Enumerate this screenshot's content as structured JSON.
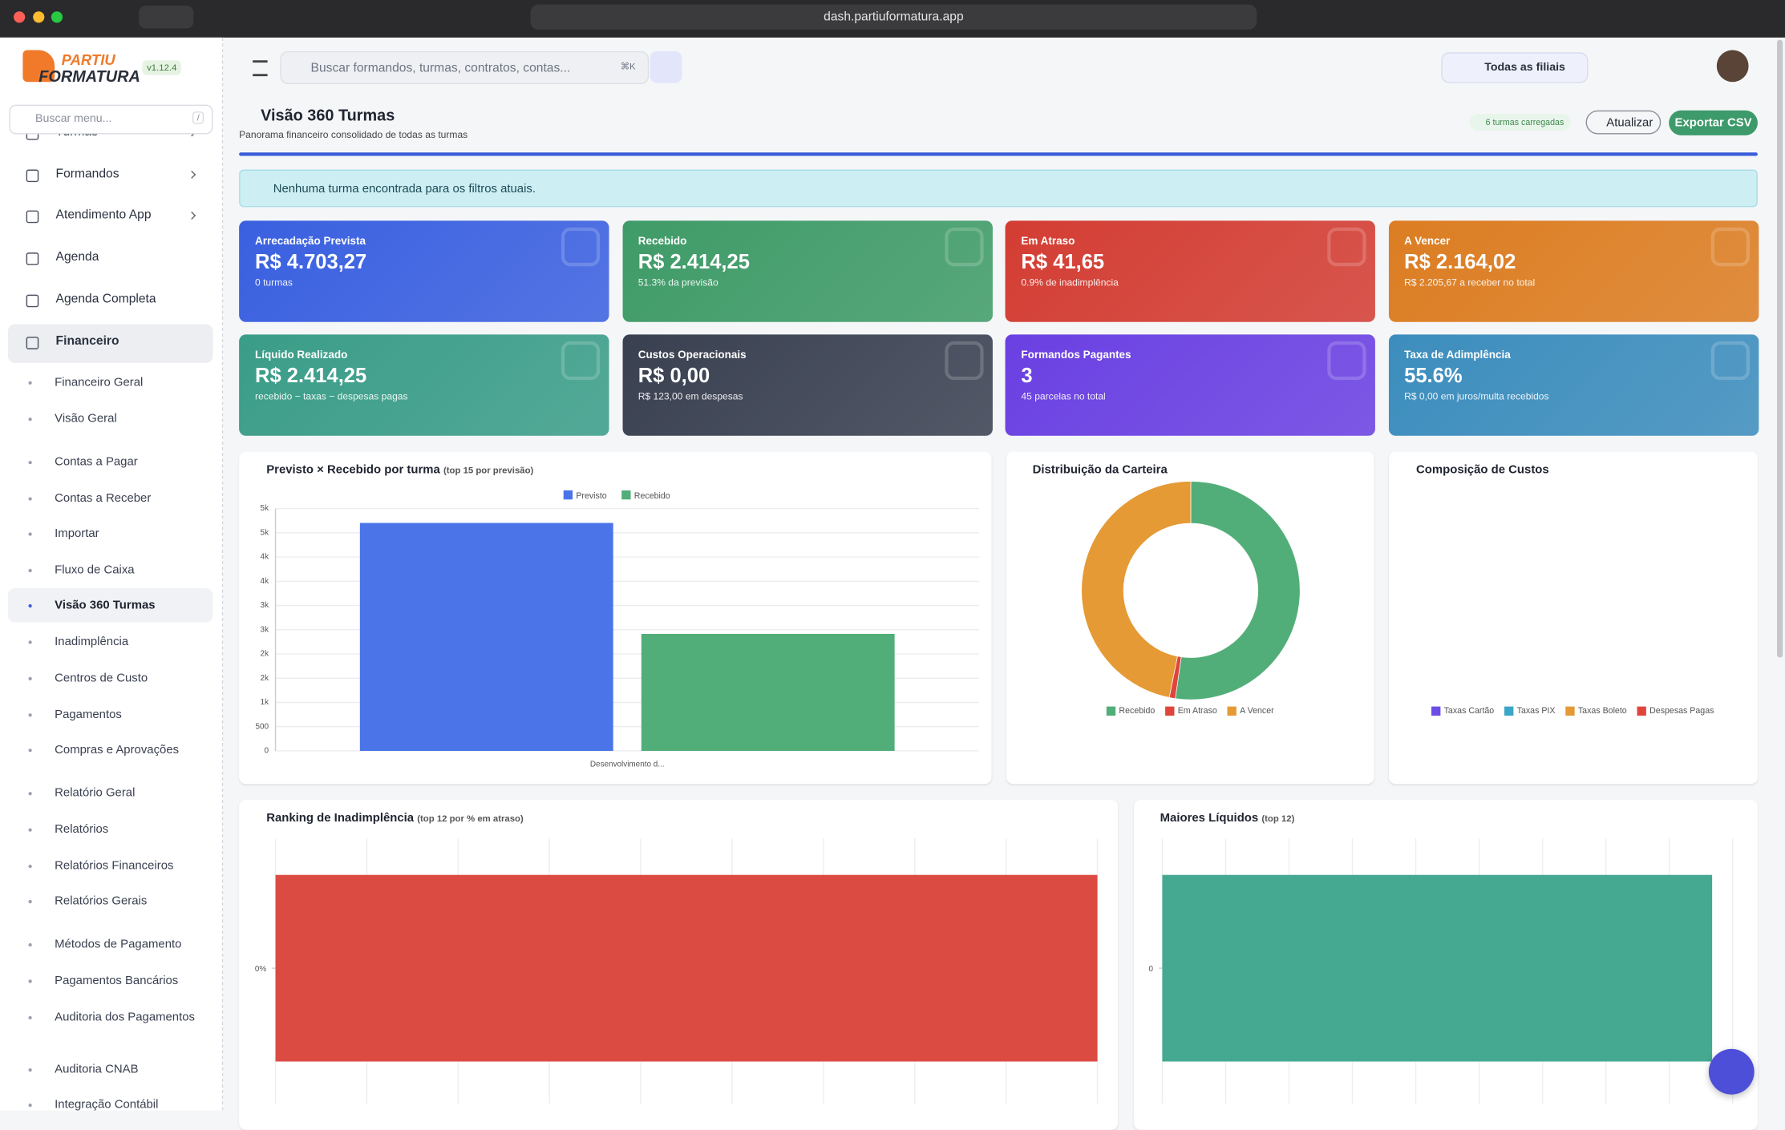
{
  "browser": {
    "url": "dash.partiuformatura.app"
  },
  "sidebar": {
    "logo_line1": "PARTIU",
    "logo_line2": "FORMATURA",
    "version": "v1.12.4",
    "search_placeholder": "Buscar menu...",
    "search_shortcut": "/",
    "menu": [
      "Turmas",
      "Formandos",
      "Atendimento App",
      "Agenda",
      "Agenda Completa",
      "Financeiro"
    ],
    "submenu": [
      "Financeiro Geral",
      "Visão Geral",
      "Contas a Pagar",
      "Contas a Receber",
      "Importar",
      "Fluxo de Caixa",
      "Visão 360 Turmas",
      "Inadimplência",
      "Centros de Custo",
      "Pagamentos",
      "Compras e Aprovações",
      "Relatório Geral",
      "Relatórios",
      "Relatórios Financeiros",
      "Relatórios Gerais",
      "Métodos de Pagamento",
      "Pagamentos Bancários",
      "Auditoria dos Pagamentos",
      "Auditoria CNAB",
      "Integração Contábil"
    ]
  },
  "topbar": {
    "search_placeholder": "Buscar formandos, turmas, contratos, contas...",
    "shortcut": "⌘K",
    "branch": "Todas as filiais"
  },
  "page": {
    "title": "Visão 360 Turmas",
    "subtitle": "Panorama financeiro consolidado de todas as turmas",
    "status": "6 turmas carregadas",
    "refresh": "Atualizar",
    "export": "Exportar CSV",
    "alert": "Nenhuma turma encontrada para os filtros atuais."
  },
  "kpis": [
    {
      "label": "Arrecadação Prevista",
      "value": "R$ 4.703,27",
      "note": "0 turmas",
      "color": "#3a60e0"
    },
    {
      "label": "Recebido",
      "value": "R$ 2.414,25",
      "note": "51.3% da previsão",
      "color": "#3f9b68"
    },
    {
      "label": "Em Atraso",
      "value": "R$ 41,65",
      "note": "0.9% de inadimplência",
      "color": "#d33d33"
    },
    {
      "label": "A Vencer",
      "value": "R$ 2.164,02",
      "note": "R$ 2.205,67 a receber no total",
      "color": "#dc7d22"
    },
    {
      "label": "Líquido Realizado",
      "value": "R$ 2.414,25",
      "note": "recebido − taxas − despesas pagas",
      "color": "#3a9d88"
    },
    {
      "label": "Custos Operacionais",
      "value": "R$ 0,00",
      "note": "R$ 123,00 em despesas",
      "color": "#394050"
    },
    {
      "label": "Formandos Pagantes",
      "value": "3",
      "note": "45 parcelas no total",
      "color": "#6a40e2"
    },
    {
      "label": "Taxa de Adimplência",
      "value": "55.6%",
      "note": "R$ 0,00 em juros/multa recebidos",
      "color": "#3c8dbd"
    }
  ],
  "charts": {
    "previsto_recebido": {
      "type": "bar",
      "title": "Previsto × Recebido por turma",
      "subtitle": "(top 15 por previsão)",
      "categories": [
        "Desenvolvimento d..."
      ],
      "series": [
        {
          "name": "Previsto",
          "color": "#4a74e8",
          "values": [
            4703.27
          ]
        },
        {
          "name": "Recebido",
          "color": "#52ae78",
          "values": [
            2414.25
          ]
        }
      ],
      "ylim": [
        0,
        5000
      ],
      "yticks": [
        0,
        500,
        {
          "value": 1000,
          "label": "1k"
        },
        {
          "value": 1500,
          "label": "2k"
        },
        {
          "value": 2000,
          "label": "2k"
        },
        {
          "value": 2500,
          "label": "3k"
        },
        {
          "value": 3000,
          "label": "3k"
        },
        {
          "value": 3500,
          "label": "4k"
        },
        {
          "value": 4000,
          "label": "4k"
        },
        {
          "value": 4500,
          "label": "5k"
        },
        {
          "value": 5000,
          "label": "5k"
        }
      ],
      "grid": true
    },
    "distribuicao": {
      "type": "pie",
      "title": "Distribuição da Carteira",
      "categories": [
        "Recebido",
        "Em Atraso",
        "A Vencer"
      ],
      "values": [
        2414.25,
        41.65,
        2164.02
      ],
      "colors": [
        "#52ae78",
        "#e0453c",
        "#e59a35"
      ]
    },
    "custos": {
      "type": "pie",
      "title": "Composição de Custos",
      "categories": [
        "Taxas Cartão",
        "Taxas PIX",
        "Taxas Boleto",
        "Despesas Pagas"
      ],
      "colors": [
        "#6c4de6",
        "#3aa6c8",
        "#e59a35",
        "#e0453c"
      ]
    },
    "ranking": {
      "type": "bar",
      "title": "Ranking de Inadimplência",
      "subtitle": "(top 12 por % em atraso)",
      "yticks": [
        {
          "value": 0,
          "label": "0%"
        }
      ],
      "color": "#db4b41"
    },
    "liquidos": {
      "type": "bar",
      "title": "Maiores Líquidos",
      "subtitle": "(top 12)",
      "yticks": [
        0
      ],
      "color": "#45a891"
    }
  }
}
